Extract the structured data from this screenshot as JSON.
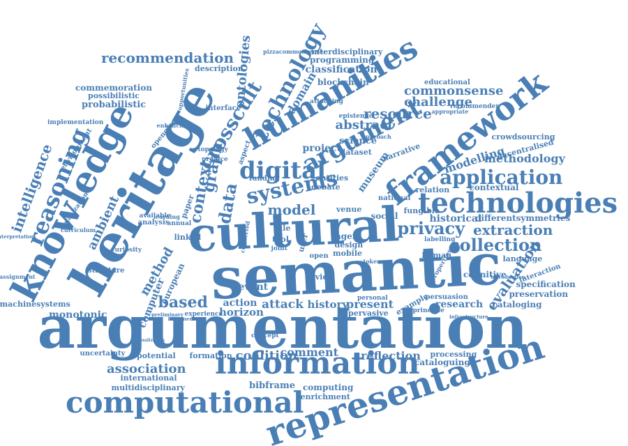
{
  "cloud": {
    "color": "#4a7fb5",
    "words": [
      "argumentation",
      "semantic",
      "heritage",
      "cultural",
      "representation",
      "knowledge",
      "computational",
      "humanities",
      "information",
      "framework",
      "technologies",
      "reasoning",
      "digital",
      "argument",
      "systems",
      "technology",
      "application",
      "crosscult",
      "privacy",
      "collection",
      "recommendation",
      "ontologies",
      "abstract",
      "commonsense",
      "intelligence",
      "data",
      "graph",
      "context",
      "model",
      "based",
      "resource",
      "challenge",
      "classification",
      "programming",
      "interdisciplinary",
      "blockchain",
      "description",
      "commemoration",
      "possibilistic",
      "probabilistic",
      "implementation",
      "methodology",
      "extraction",
      "modelling",
      "ambient",
      "evaluation",
      "method",
      "association",
      "potential",
      "formation",
      "coalition",
      "comment",
      "reflection",
      "processing",
      "cataloguing",
      "computing",
      "enrichment",
      "bibframe",
      "multidisciplinary",
      "international",
      "uncertainty",
      "monotonic",
      "machinesystems",
      "assignment",
      "reinterpretation",
      "structure",
      "curiosity",
      "curriculum",
      "learning",
      "analysis",
      "available",
      "annual",
      "linked",
      "computer",
      "european",
      "event",
      "action",
      "attack",
      "horizon",
      "history",
      "present",
      "pervasive",
      "personal",
      "example",
      "research",
      "cataloging",
      "preservation",
      "specification",
      "interaction",
      "language",
      "cognitive",
      "human",
      "persuasion",
      "principle",
      "fungible",
      "historical",
      "differentsymmetries",
      "relation",
      "contextual",
      "decentralised",
      "crowdsourcing",
      "educational",
      "recommender",
      "appropriate",
      "science",
      "project",
      "dataset",
      "approach",
      "epistemic",
      "attacking",
      "domain",
      "museum",
      "narrative",
      "entities",
      "funding",
      "debate",
      "venue",
      "national",
      "social",
      "agent",
      "design",
      "mobile",
      "review",
      "open",
      "tool",
      "rule",
      "joint",
      "user",
      "interface",
      "topology",
      "preface",
      "aspect",
      "environment",
      "enhancing",
      "openglam",
      "organization",
      "opportunities",
      "pizzacommonsense",
      "labelling",
      "experience",
      "preliminary",
      "intermediate",
      "concept",
      "visualization",
      "paper",
      "connected",
      "token",
      "introduction",
      "infrastructure",
      "properties"
    ]
  }
}
